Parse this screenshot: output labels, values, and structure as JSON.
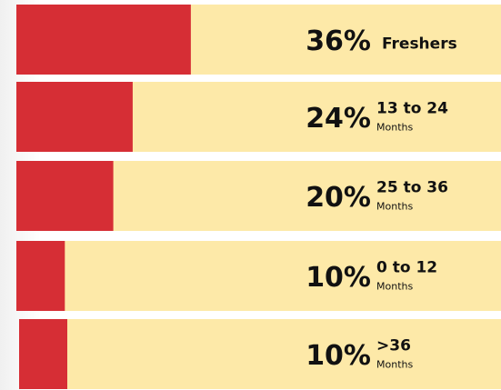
{
  "chart_data": {
    "type": "bar",
    "orientation": "horizontal",
    "categories": [
      "Freshers",
      "13 to 24",
      "25 to 36",
      "0 to 12",
      ">36"
    ],
    "category_notes": [
      null,
      "Months",
      "Months",
      "Months",
      "Months"
    ],
    "values": [
      36,
      24,
      20,
      10,
      10
    ],
    "value_labels": [
      "36%",
      "24%",
      "20%",
      "10%",
      "10%"
    ],
    "xlim": [
      0,
      100
    ],
    "color": "#d62e35",
    "track_color": "#fde9a8"
  }
}
